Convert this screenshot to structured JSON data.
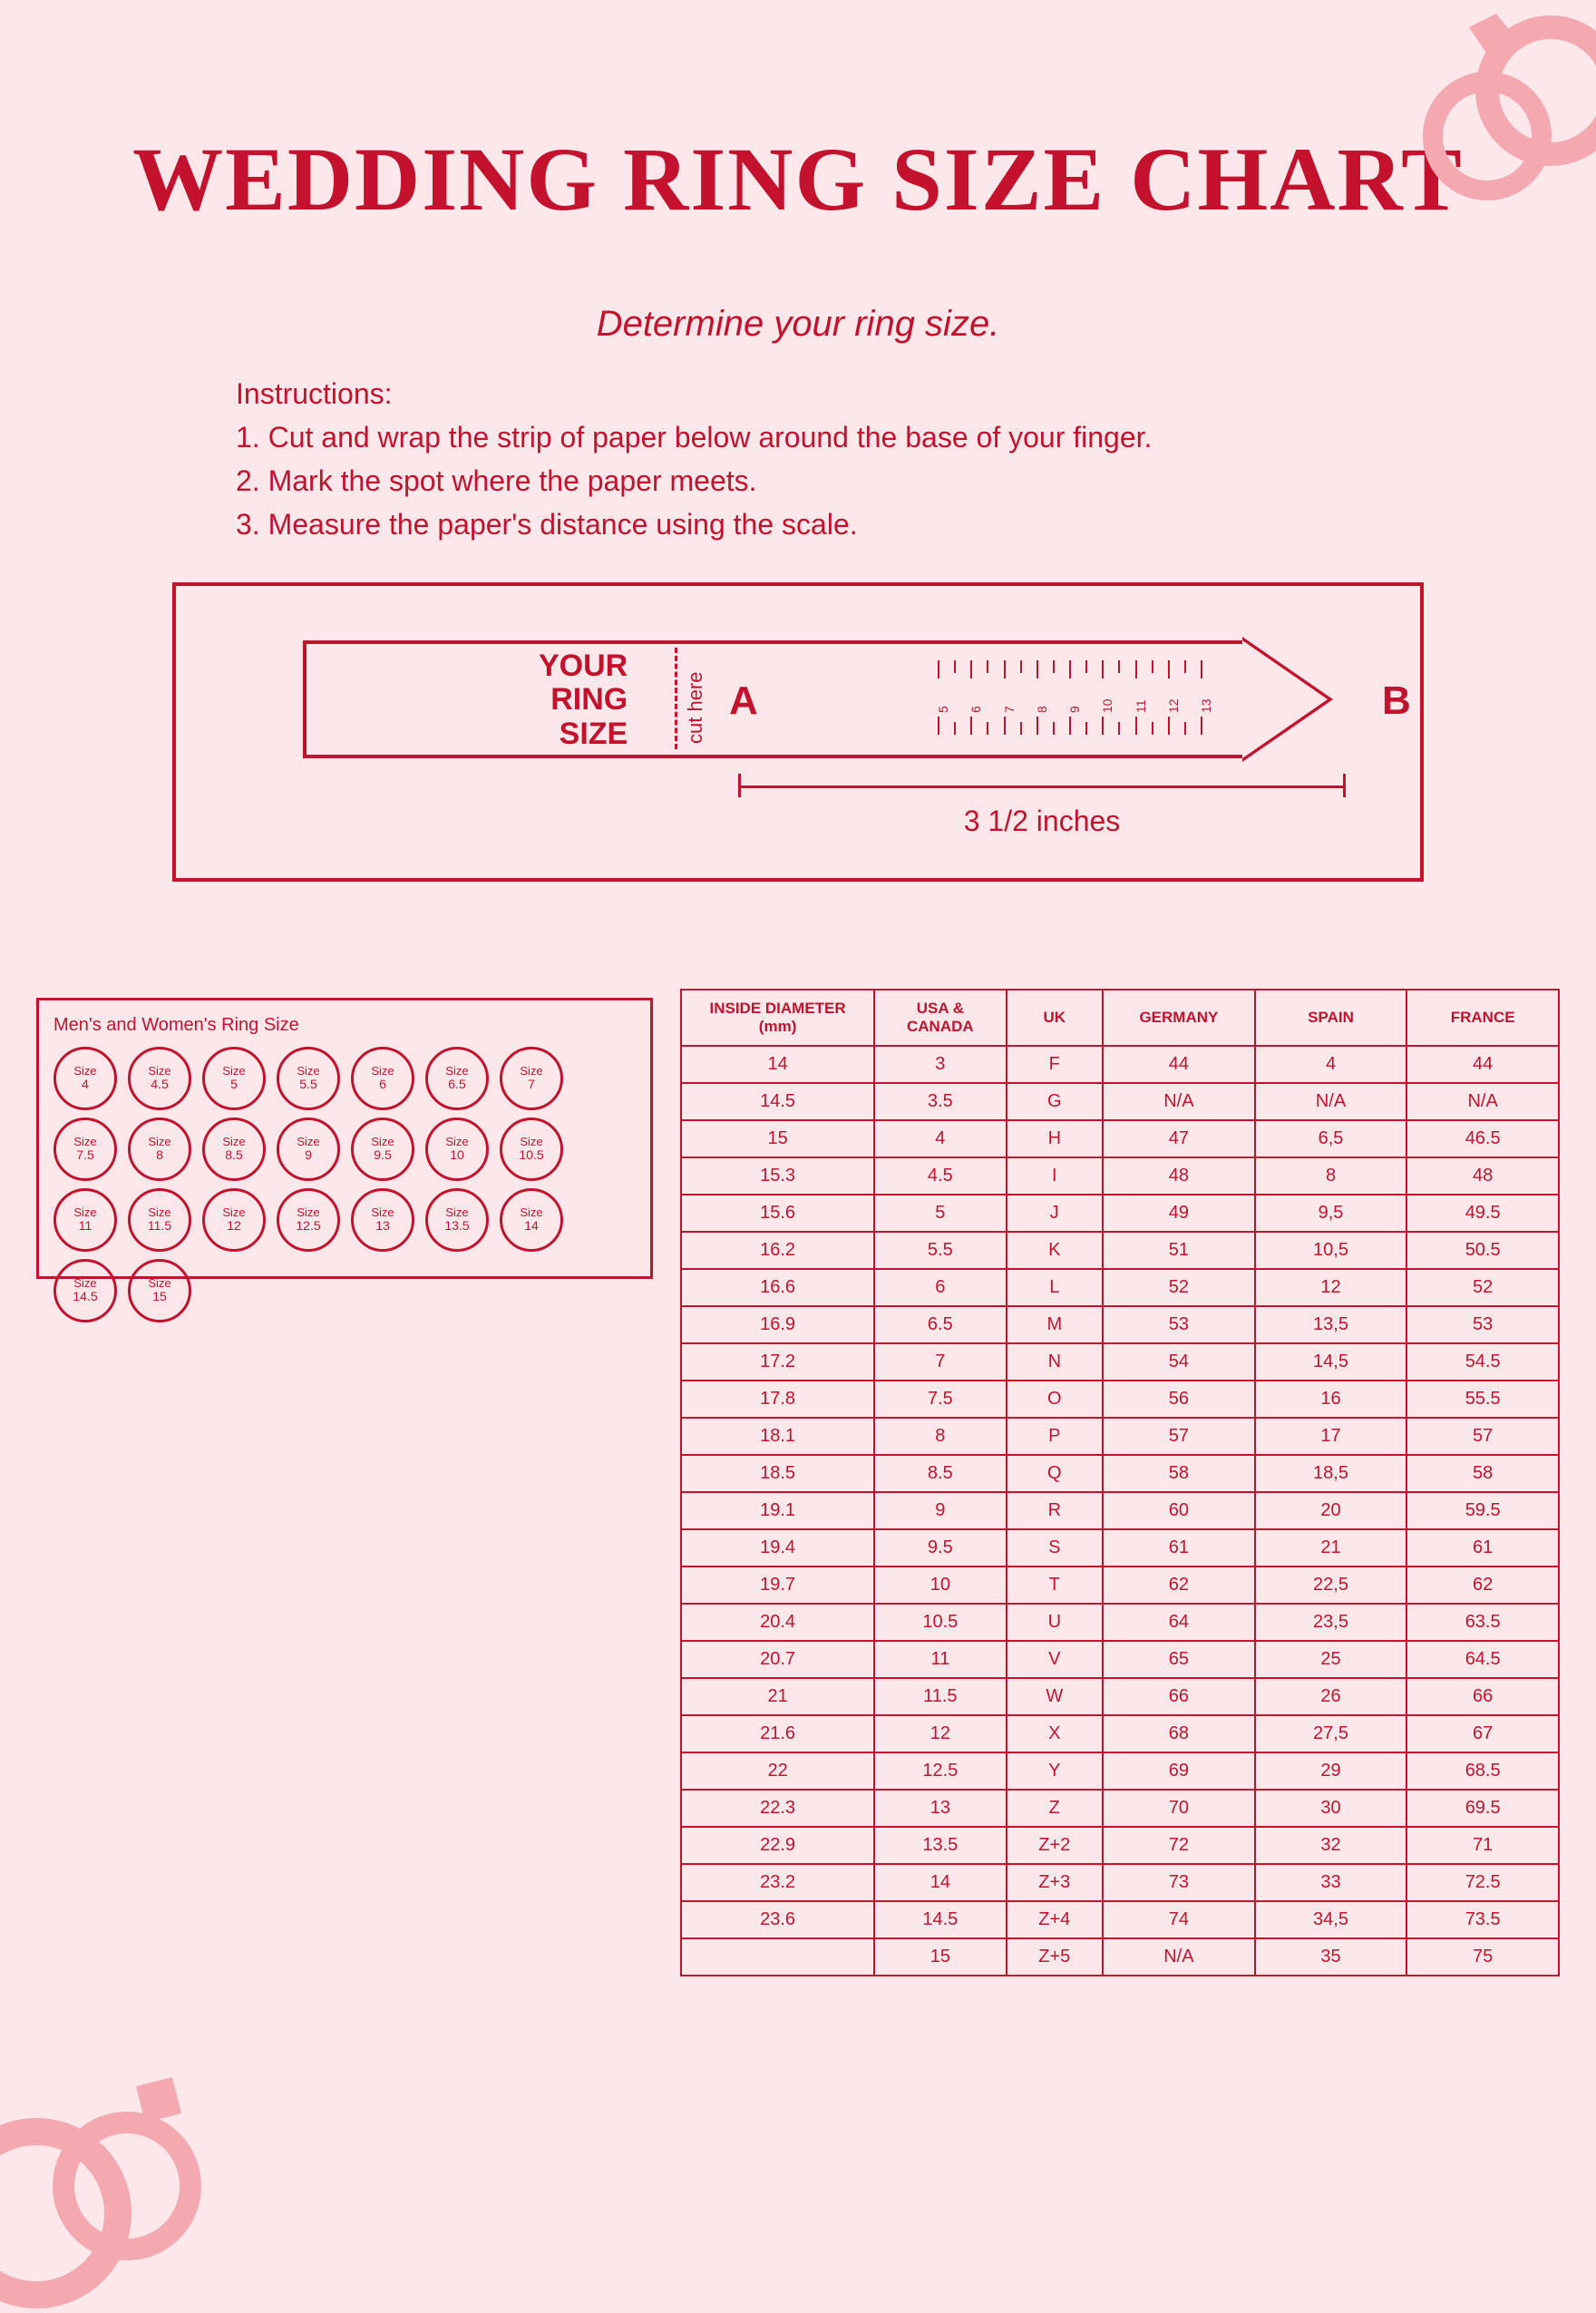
{
  "colors": {
    "bg": "#fce8ea",
    "red": "#c4122e",
    "darkred": "#b01028",
    "pink_ring": "#f4a8b0"
  },
  "title": "WEDDING RING SIZE CHART",
  "subtitle": "Determine your ring size.",
  "instructions_label": "Instructions:",
  "instructions": [
    "1. Cut and wrap the strip of paper below around the base of your finger.",
    "2. Mark the spot where the paper meets.",
    "3. Measure the paper's distance using the scale."
  ],
  "sizer": {
    "your_ring_size": "YOUR RING SIZE",
    "cut_here": "cut here",
    "a": "A",
    "b": "B",
    "ruler_numbers": [
      "5",
      "6",
      "7",
      "8",
      "9",
      "10",
      "11",
      "12",
      "13"
    ],
    "scale_label": "3 1/2 inches"
  },
  "circles": {
    "title": "Men's and Women's Ring Size",
    "label_prefix": "Size",
    "sizes": [
      "4",
      "4.5",
      "5",
      "5.5",
      "6",
      "6.5",
      "7",
      "7.5",
      "8",
      "8.5",
      "9",
      "9.5",
      "10",
      "10.5",
      "11",
      "11.5",
      "12",
      "12.5",
      "13",
      "13.5",
      "14",
      "14.5",
      "15"
    ]
  },
  "table": {
    "headers": [
      "INSIDE DIAMETER (mm)",
      "USA & CANADA",
      "UK",
      "GERMANY",
      "SPAIN",
      "FRANCE"
    ],
    "rows": [
      [
        "14",
        "3",
        "F",
        "44",
        "4",
        "44"
      ],
      [
        "14.5",
        "3.5",
        "G",
        "N/A",
        "N/A",
        "N/A"
      ],
      [
        "15",
        "4",
        "H",
        "47",
        "6,5",
        "46.5"
      ],
      [
        "15.3",
        "4.5",
        "I",
        "48",
        "8",
        "48"
      ],
      [
        "15.6",
        "5",
        "J",
        "49",
        "9,5",
        "49.5"
      ],
      [
        "16.2",
        "5.5",
        "K",
        "51",
        "10,5",
        "50.5"
      ],
      [
        "16.6",
        "6",
        "L",
        "52",
        "12",
        "52"
      ],
      [
        "16.9",
        "6.5",
        "M",
        "53",
        "13,5",
        "53"
      ],
      [
        "17.2",
        "7",
        "N",
        "54",
        "14,5",
        "54.5"
      ],
      [
        "17.8",
        "7.5",
        "O",
        "56",
        "16",
        "55.5"
      ],
      [
        "18.1",
        "8",
        "P",
        "57",
        "17",
        "57"
      ],
      [
        "18.5",
        "8.5",
        "Q",
        "58",
        "18,5",
        "58"
      ],
      [
        "19.1",
        "9",
        "R",
        "60",
        "20",
        "59.5"
      ],
      [
        "19.4",
        "9.5",
        "S",
        "61",
        "21",
        "61"
      ],
      [
        "19.7",
        "10",
        "T",
        "62",
        "22,5",
        "62"
      ],
      [
        "20.4",
        "10.5",
        "U",
        "64",
        "23,5",
        "63.5"
      ],
      [
        "20.7",
        "11",
        "V",
        "65",
        "25",
        "64.5"
      ],
      [
        "21",
        "11.5",
        "W",
        "66",
        "26",
        "66"
      ],
      [
        "21.6",
        "12",
        "X",
        "68",
        "27,5",
        "67"
      ],
      [
        "22",
        "12.5",
        "Y",
        "69",
        "29",
        "68.5"
      ],
      [
        "22.3",
        "13",
        "Z",
        "70",
        "30",
        "69.5"
      ],
      [
        "22.9",
        "13.5",
        "Z+2",
        "72",
        "32",
        "71"
      ],
      [
        "23.2",
        "14",
        "Z+3",
        "73",
        "33",
        "72.5"
      ],
      [
        "23.6",
        "14.5",
        "Z+4",
        "74",
        "34,5",
        "73.5"
      ],
      [
        "",
        "15",
        "Z+5",
        "N/A",
        "35",
        "75"
      ]
    ]
  }
}
